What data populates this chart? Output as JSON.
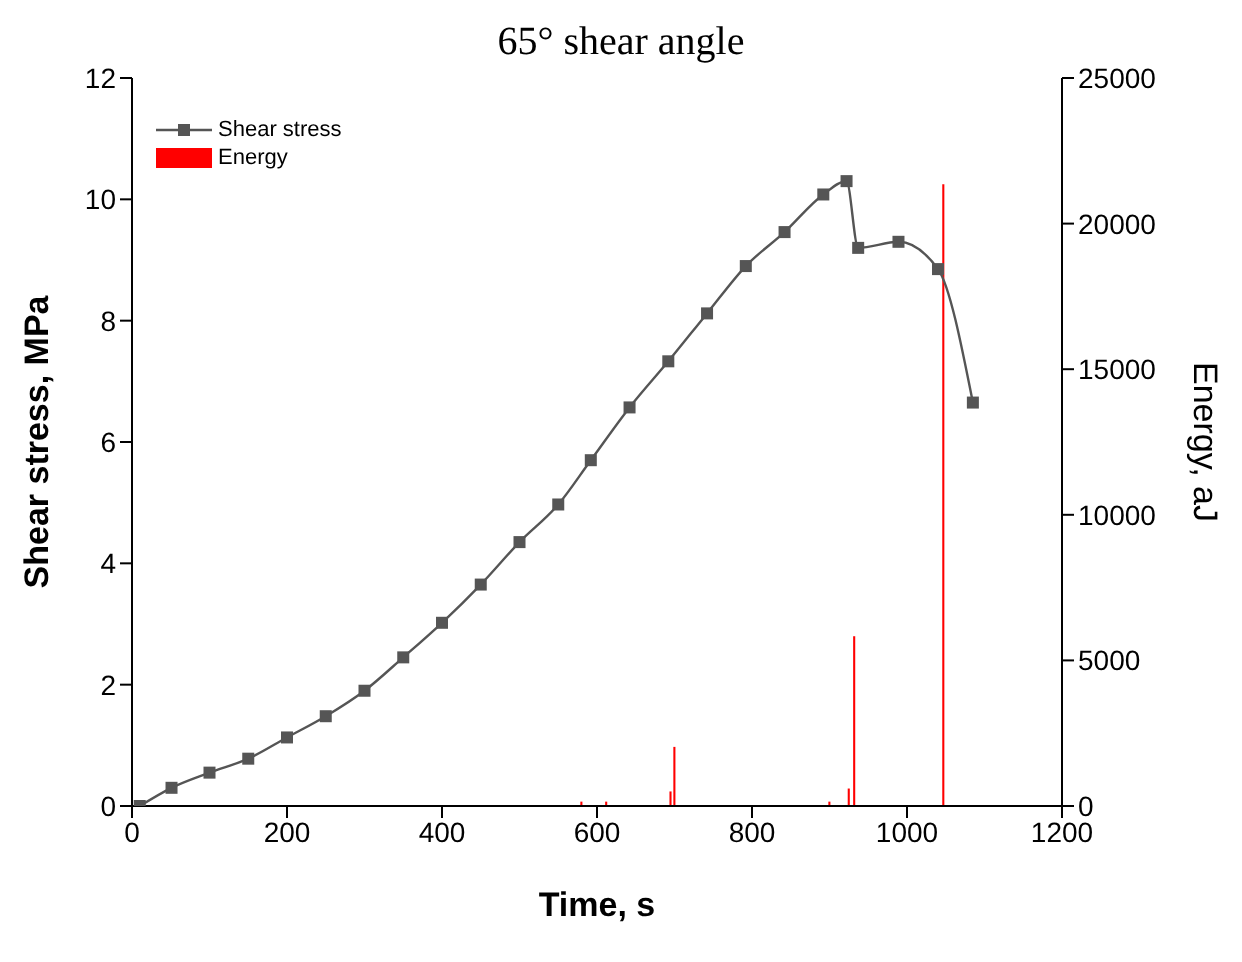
{
  "chart_data": {
    "type": "line",
    "title": "65° shear angle",
    "xlabel": "Time, s",
    "ylabel": "Shear stress, MPa",
    "y2label": "Energy, aJ",
    "xlim": [
      0,
      1200
    ],
    "xticks": [
      0,
      200,
      400,
      600,
      800,
      1000,
      1200
    ],
    "ylim": [
      0,
      12
    ],
    "yticks": [
      0,
      2,
      4,
      6,
      8,
      10,
      12
    ],
    "y2lim": [
      0,
      25000
    ],
    "y2ticks": [
      0,
      5000,
      10000,
      15000,
      20000,
      25000
    ],
    "grid": false,
    "legend": "top left",
    "marker": "square",
    "series": [
      {
        "name": "Shear stress",
        "color": "#555555",
        "x": [
          10,
          51,
          100,
          150,
          200,
          250,
          300,
          350,
          400,
          450,
          500,
          550,
          592,
          642,
          692,
          742,
          792,
          842,
          892,
          922,
          937,
          989,
          1040,
          1085
        ],
        "values": [
          0,
          0.3,
          0.55,
          0.78,
          1.13,
          1.48,
          1.9,
          2.45,
          3.02,
          3.65,
          4.35,
          4.97,
          5.7,
          6.57,
          7.33,
          8.12,
          8.9,
          9.46,
          10.08,
          10.3,
          9.2,
          9.3,
          8.85,
          6.65
        ]
      },
      {
        "name": "Energy",
        "type": "bar",
        "axis": "y2",
        "color": "#ff0000",
        "x": [
          580,
          612,
          695,
          700,
          900,
          925,
          932,
          1047
        ],
        "values": [
          150,
          150,
          500,
          2030,
          150,
          600,
          5830,
          21350
        ]
      }
    ]
  }
}
